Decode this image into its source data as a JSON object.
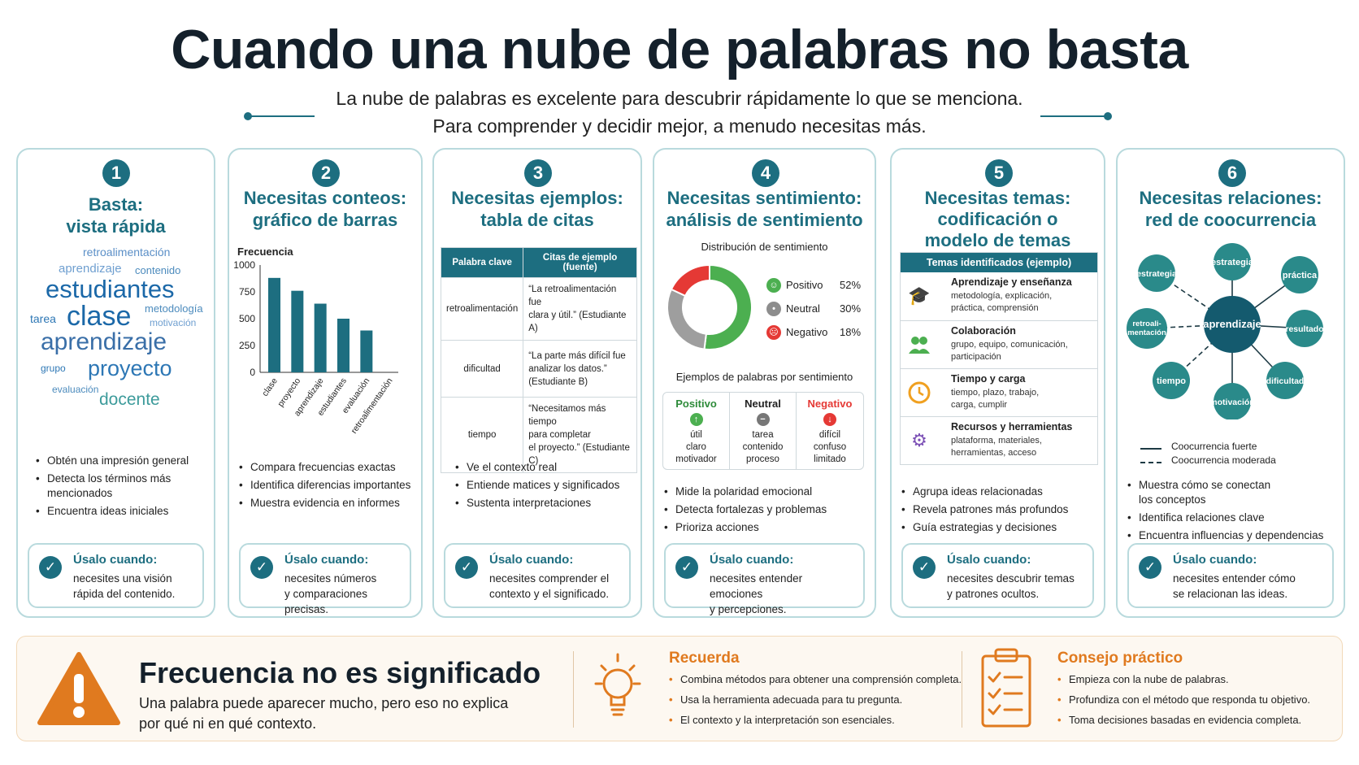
{
  "header": {
    "title": "Cuando una nube de palabras no basta",
    "subtitle_1": "La nube de palabras es excelente para descubrir rápidamente lo que se menciona.",
    "subtitle_2": "Para comprender y decidir mejor, a menudo necesitas más."
  },
  "accent_color": "#1d6e80",
  "cards": [
    {
      "number": "1",
      "title_1": "Basta:",
      "title_2": "vista rápida",
      "word_cloud": [
        "retroalimentación",
        "aprendizaje",
        "contenido",
        "estudiantes",
        "tarea",
        "clase",
        "metodología",
        "motivación",
        "aprendizaje",
        "grupo",
        "proyecto",
        "evaluación",
        "docente"
      ],
      "bullets": [
        "Obtén una impresión general",
        "Detecta los términos más",
        "mencionados",
        "Encuentra ideas iniciales"
      ],
      "use_title": "Úsalo cuando:",
      "use_text_1": "necesites una visión",
      "use_text_2": "rápida del contenido."
    },
    {
      "number": "2",
      "title_1": "Necesitas conteos:",
      "title_2": "gráfico de barras",
      "bullets": [
        "Compara frecuencias exactas",
        "Identifica diferencias importantes",
        "Muestra evidencia en informes"
      ],
      "use_title": "Úsalo cuando:",
      "use_text_1": "necesites números",
      "use_text_2": "y comparaciones precisas."
    },
    {
      "number": "3",
      "title_1": "Necesitas ejemplos:",
      "title_2": "tabla de citas",
      "table_headers": [
        "Palabra clave",
        "Citas de ejemplo (fuente)"
      ],
      "table_rows": [
        {
          "keyword": "retroalimentación",
          "quote_1": "“La retroalimentación fue",
          "quote_2": "clara y útil.” (Estudiante A)",
          "quote_3": ""
        },
        {
          "keyword": "dificultad",
          "quote_1": "“La parte más difícil fue",
          "quote_2": "analizar los datos.”",
          "quote_3": "(Estudiante B)"
        },
        {
          "keyword": "tiempo",
          "quote_1": "“Necesitamos más tiempo",
          "quote_2": "para completar",
          "quote_3": "el proyecto.” (Estudiante C)"
        }
      ],
      "bullets": [
        "Ve el contexto real",
        "Entiende matices y significados",
        "Sustenta interpretaciones"
      ],
      "use_title": "Úsalo cuando:",
      "use_text_1": "necesites comprender el",
      "use_text_2": "contexto y el significado."
    },
    {
      "number": "4",
      "title_1": "Necesitas sentimiento:",
      "title_2": "análisis de sentimiento",
      "dist_title": "Distribución de sentimiento",
      "examples_title": "Ejemplos de palabras por sentimiento",
      "sentiment_columns": [
        {
          "label": "Positivo",
          "words": [
            "útil",
            "claro",
            "motivador"
          ]
        },
        {
          "label": "Neutral",
          "words": [
            "tarea",
            "contenido",
            "proceso"
          ]
        },
        {
          "label": "Negativo",
          "words": [
            "difícil",
            "confuso",
            "limitado"
          ]
        }
      ],
      "bullets": [
        "Mide la polaridad emocional",
        "Detecta fortalezas y problemas",
        "Prioriza acciones"
      ],
      "use_title": "Úsalo cuando:",
      "use_text_1": "necesites entender emociones",
      "use_text_2": "y percepciones."
    },
    {
      "number": "5",
      "title_1": "Necesitas temas:",
      "title_2": "codificación o",
      "title_3": "modelo de temas",
      "table_header": "Temas identificados (ejemplo)",
      "themes": [
        {
          "icon": "graduation-cap-icon",
          "title": "Aprendizaje y enseñanza",
          "desc_1": "metodología, explicación,",
          "desc_2": "práctica, comprensión"
        },
        {
          "icon": "people-icon",
          "title": "Colaboración",
          "desc_1": "grupo, equipo, comunicación,",
          "desc_2": "participación"
        },
        {
          "icon": "clock-icon",
          "title": "Tiempo y carga",
          "desc_1": "tiempo, plazo, trabajo,",
          "desc_2": "carga, cumplir"
        },
        {
          "icon": "gear-icon",
          "title": "Recursos y herramientas",
          "desc_1": "plataforma, materiales,",
          "desc_2": "herramientas, acceso"
        }
      ],
      "bullets": [
        "Agrupa ideas relacionadas",
        "Revela patrones más profundos",
        "Guía estrategias y decisiones"
      ],
      "use_title": "Úsalo cuando:",
      "use_text_1": "necesites descubrir temas",
      "use_text_2": "y patrones ocultos."
    },
    {
      "number": "6",
      "title_1": "Necesitas relaciones:",
      "title_2": "red de coocurrencia",
      "network_center": "aprendizaje",
      "network_nodes": [
        "estrategia",
        "práctica",
        "resultado",
        "dificultad",
        "motivación",
        "tiempo",
        "retroali-",
        "mentación",
        "estrategia"
      ],
      "legend_strong": "Coocurrencia fuerte",
      "legend_moderate": "Coocurrencia moderada",
      "bullets": [
        "Muestra cómo se conectan",
        "los conceptos",
        "Identifica relaciones clave",
        "Encuentra influencias y dependencias"
      ],
      "use_title": "Úsalo cuando:",
      "use_text_1": "necesites entender cómo",
      "use_text_2": "se relacionan las ideas."
    }
  ],
  "chart_data": {
    "type": "bar",
    "title": "",
    "ylabel": "Frecuencia",
    "xlabel": "",
    "categories": [
      "clase",
      "proyecto",
      "aprendizaje",
      "estudiantes",
      "evaluación",
      "retroalimentación"
    ],
    "values": [
      880,
      760,
      640,
      500,
      390,
      0
    ],
    "yticks": [
      "1000",
      "750",
      "500",
      "250",
      "0"
    ],
    "ylim": [
      0,
      1000
    ],
    "grid": false,
    "color": "#1d6e80"
  },
  "sentiment_chart": {
    "type": "pie",
    "labels": [
      "Positivo",
      "Neutral",
      "Negativo"
    ],
    "values": [
      52,
      30,
      18
    ],
    "percent_labels": [
      "52%",
      "30%",
      "18%"
    ],
    "colors": [
      "#4caf50",
      "#9e9e9e",
      "#e53935"
    ]
  },
  "banner": {
    "title": "Frecuencia no es significado",
    "text_1": "Una palabra puede aparecer mucho, pero eso no explica",
    "text_2": "por qué ni en qué contexto.",
    "recuerda_title": "Recuerda",
    "recuerda_items": [
      "Combina métodos para obtener una comprensión completa.",
      "Usa la herramienta adecuada para tu pregunta.",
      "El contexto y la interpretación son esenciales."
    ],
    "consejo_title": "Consejo práctico",
    "consejo_items": [
      "Empieza con la nube de palabras.",
      "Profundiza con el método que responda tu objetivo.",
      "Toma decisiones basadas en evidencia completa."
    ],
    "orange_color": "#e07a1f"
  }
}
